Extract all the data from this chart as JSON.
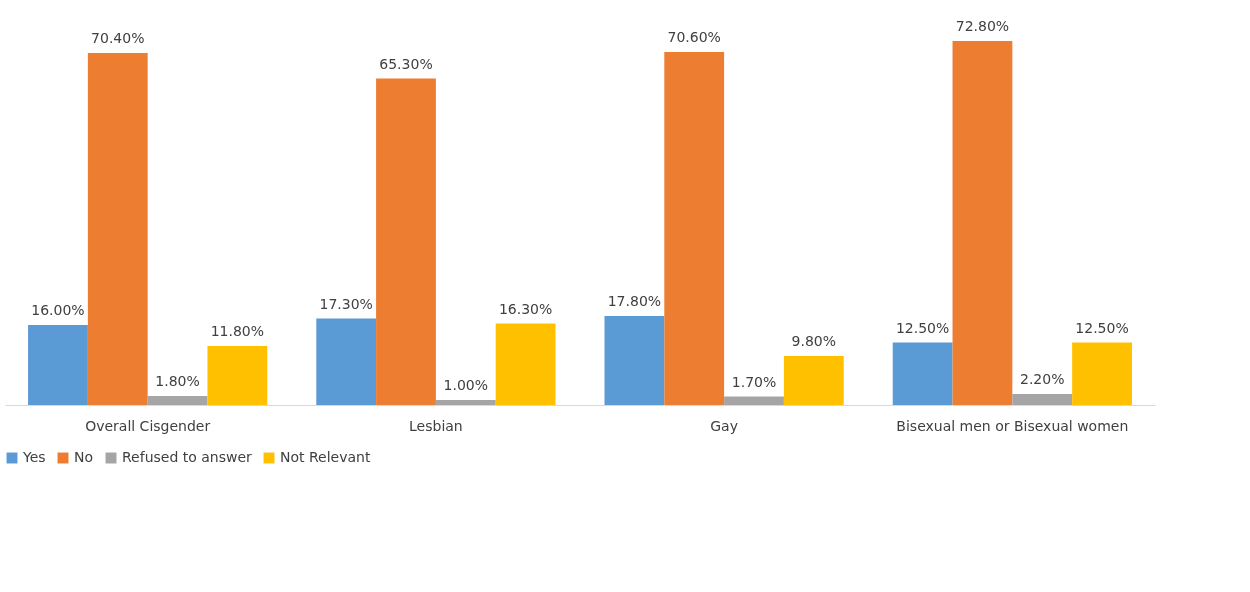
{
  "chart_data": {
    "type": "bar",
    "categories": [
      "Overall Cisgender",
      "Lesbian",
      "Gay",
      "Bisexual men or Bisexual women"
    ],
    "series": [
      {
        "name": "Yes",
        "color": "#5b9bd5",
        "values": [
          16.0,
          17.3,
          17.8,
          12.5
        ],
        "value_labels": [
          "16.00%",
          "17.30%",
          "17.80%",
          "12.50%"
        ]
      },
      {
        "name": "No",
        "color": "#ed7d31",
        "values": [
          70.4,
          65.3,
          70.6,
          72.8
        ],
        "value_labels": [
          "70.40%",
          "65.30%",
          "70.60%",
          "72.80%"
        ]
      },
      {
        "name": "Refused to answer",
        "color": "#a5a5a5",
        "values": [
          1.8,
          1.0,
          1.7,
          2.2
        ],
        "value_labels": [
          "1.80%",
          "1.00%",
          "1.70%",
          "2.20%"
        ]
      },
      {
        "name": "Not Relevant",
        "color": "#ffc000",
        "values": [
          11.8,
          16.3,
          9.8,
          12.5
        ],
        "value_labels": [
          "11.80%",
          "16.30%",
          "9.80%",
          "12.50%"
        ]
      }
    ],
    "legend": "bottom",
    "grid": false,
    "tick_labels": "x"
  }
}
